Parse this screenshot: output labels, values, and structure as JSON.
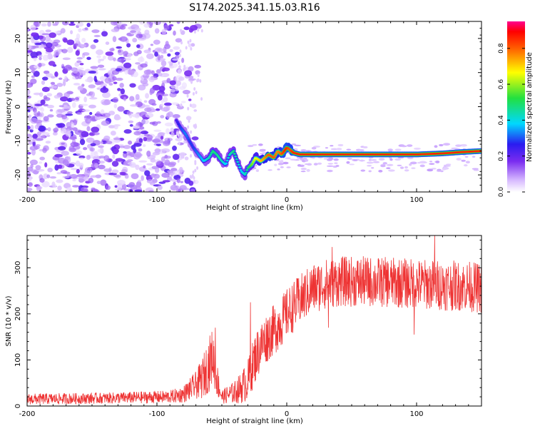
{
  "title": "S174.2025.341.15.03.R16",
  "chart_data": [
    {
      "type": "heatmap",
      "description_key": "spectrogram",
      "xlabel": "Height of straight line (km)",
      "ylabel": "Frequency (Hz)",
      "xlim": [
        -200,
        150
      ],
      "ylim": [
        -25,
        25
      ],
      "x_ticks": [
        -200,
        -100,
        0,
        100
      ],
      "x_tick_labels": [
        "-200",
        "-100",
        "0",
        "100"
      ],
      "y_ticks": [
        20,
        10,
        0,
        -10,
        -20
      ],
      "y_tick_labels": [
        "20",
        "10",
        "0",
        "-10",
        "-20"
      ],
      "colorbar": {
        "label": "Normalized spectral amplitude",
        "range": [
          0.0,
          0.95
        ],
        "ticks": [
          0.0,
          0.2,
          0.4,
          0.6,
          0.8
        ],
        "tick_labels": [
          "0.0",
          "0.2",
          "0.4",
          "0.6",
          "0.8"
        ]
      },
      "signal_track": {
        "x": [
          -85,
          -82,
          -78,
          -75,
          -72,
          -68,
          -64,
          -60,
          -57,
          -54,
          -50,
          -47,
          -44,
          -41,
          -38,
          -35,
          -32,
          -30,
          -27,
          -24,
          -20,
          -17,
          -14,
          -10,
          -7,
          -4,
          -2,
          0,
          2,
          5,
          10,
          20,
          40,
          60,
          80,
          100,
          120,
          135,
          150
        ],
        "freq": [
          -4,
          -6,
          -8,
          -10,
          -12,
          -14,
          -16,
          -15,
          -13,
          -14,
          -16,
          -17,
          -14,
          -13,
          -16,
          -19,
          -20,
          -18,
          -17,
          -15,
          -16,
          -15,
          -14,
          -15,
          -13,
          -14,
          -13,
          -12,
          -12.5,
          -13.5,
          -14,
          -14,
          -14,
          -14,
          -14,
          -14,
          -13.7,
          -13.3,
          -13
        ],
        "amplitude": [
          0.25,
          0.3,
          0.35,
          0.3,
          0.3,
          0.35,
          0.4,
          0.45,
          0.5,
          0.5,
          0.45,
          0.4,
          0.45,
          0.5,
          0.45,
          0.4,
          0.45,
          0.5,
          0.6,
          0.7,
          0.75,
          0.8,
          0.85,
          0.85,
          0.8,
          0.85,
          0.9,
          0.9,
          0.85,
          0.9,
          0.9,
          0.9,
          0.9,
          0.9,
          0.9,
          0.9,
          0.9,
          0.9,
          0.9
        ]
      },
      "noise_region_x": [
        -200,
        -80
      ],
      "noise_amplitude": [
        0.05,
        0.25
      ]
    },
    {
      "type": "line",
      "description_key": "snr",
      "xlabel": "Height of straight line (km)",
      "ylabel": "SNR (10 * v/v)",
      "xlim": [
        -200,
        150
      ],
      "ylim": [
        0,
        370
      ],
      "x_ticks": [
        -200,
        -100,
        0,
        100
      ],
      "x_tick_labels": [
        "-200",
        "-100",
        "0",
        "100"
      ],
      "y_ticks": [
        0,
        100,
        200,
        300
      ],
      "y_tick_labels": [
        "0",
        "100",
        "200",
        "300"
      ],
      "color": "#ee3333",
      "envelope": {
        "x": [
          -200,
          -140,
          -90,
          -80,
          -70,
          -65,
          -60,
          -57,
          -54,
          -50,
          -45,
          -40,
          -35,
          -30,
          -25,
          -20,
          -15,
          -10,
          -5,
          0,
          5,
          10,
          20,
          30,
          40,
          60,
          80,
          100,
          120,
          140,
          150
        ],
        "base": [
          15,
          17,
          20,
          25,
          45,
          60,
          90,
          110,
          60,
          20,
          25,
          30,
          40,
          55,
          100,
          130,
          150,
          165,
          180,
          200,
          215,
          230,
          255,
          265,
          270,
          270,
          268,
          265,
          262,
          260,
          255
        ],
        "spread": [
          12,
          12,
          14,
          18,
          30,
          45,
          60,
          60,
          40,
          15,
          20,
          25,
          35,
          45,
          55,
          55,
          55,
          55,
          55,
          55,
          55,
          55,
          55,
          55,
          55,
          55,
          55,
          55,
          55,
          55,
          55
        ]
      },
      "peaks": [
        {
          "x": -55,
          "y": 170
        },
        {
          "x": -28,
          "y": 225
        },
        {
          "x": 35,
          "y": 345
        },
        {
          "x": 114,
          "y": 370
        },
        {
          "x": 32,
          "y": 170
        },
        {
          "x": 98,
          "y": 155
        }
      ]
    }
  ]
}
